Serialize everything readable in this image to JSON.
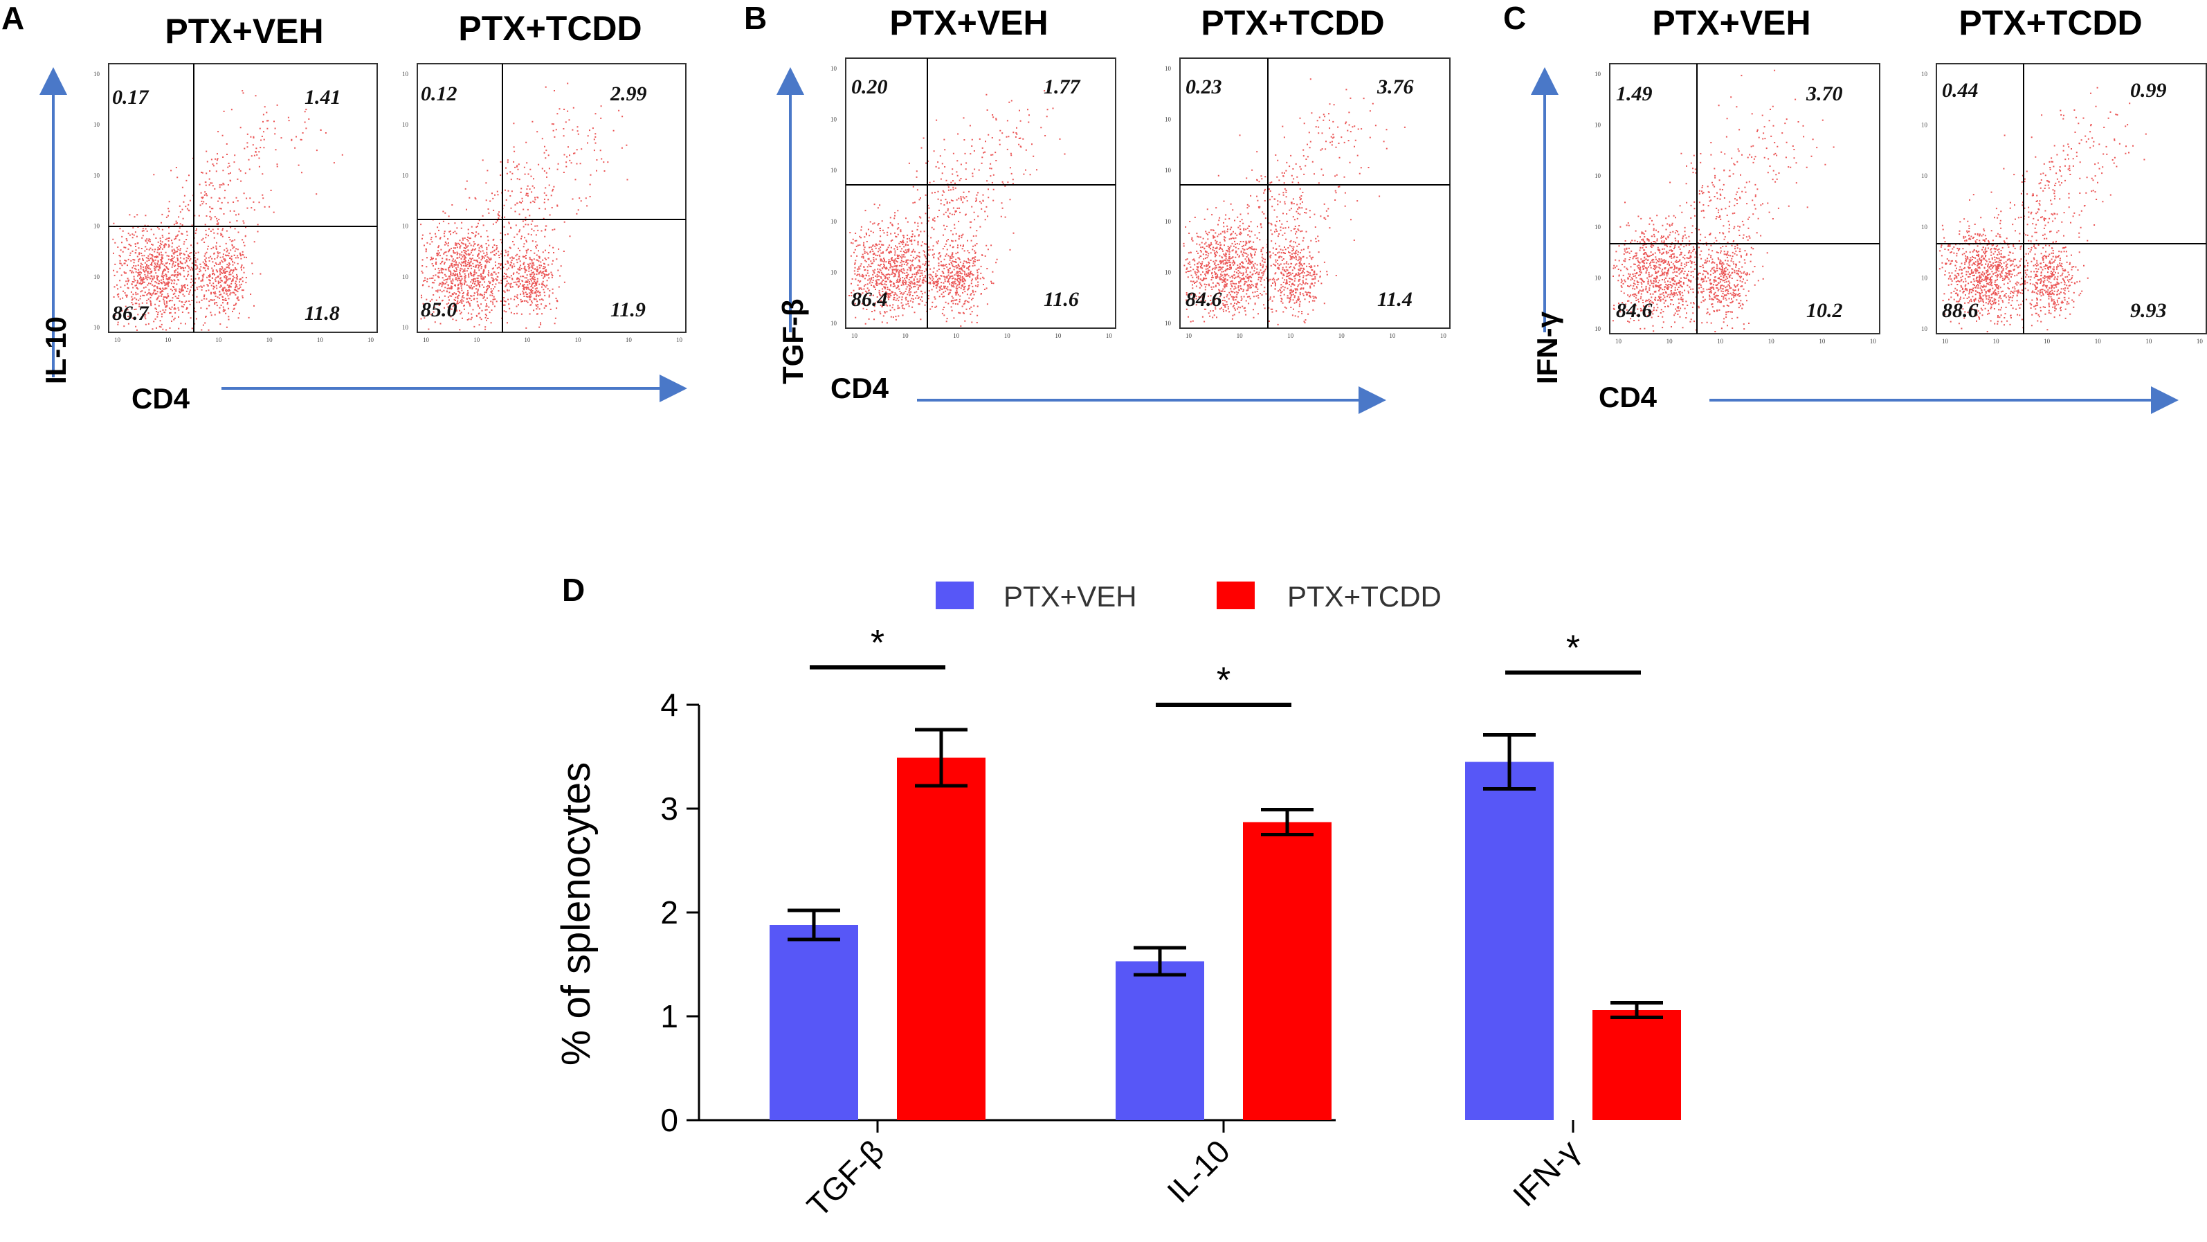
{
  "flow_panels": [
    {
      "letter": "A",
      "y_marker": "IL-10",
      "x_marker": "CD4",
      "plots": [
        {
          "title": "PTX+VEH",
          "q_ul": "0.17",
          "q_ur": "1.41",
          "q_ll": "86.7",
          "q_lr": "11.8"
        },
        {
          "title": "PTX+TCDD",
          "q_ul": "0.12",
          "q_ur": "2.99",
          "q_ll": "85.0",
          "q_lr": "11.9"
        }
      ]
    },
    {
      "letter": "B",
      "y_marker": "TGF-β",
      "x_marker": "CD4",
      "plots": [
        {
          "title": "PTX+VEH",
          "q_ul": "0.20",
          "q_ur": "1.77",
          "q_ll": "86.4",
          "q_lr": "11.6"
        },
        {
          "title": "PTX+TCDD",
          "q_ul": "0.23",
          "q_ur": "3.76",
          "q_ll": "84.6",
          "q_lr": "11.4"
        }
      ]
    },
    {
      "letter": "C",
      "y_marker": "IFN-γ",
      "x_marker": "CD4",
      "plots": [
        {
          "title": "PTX+VEH",
          "q_ul": "1.49",
          "q_ur": "3.70",
          "q_ll": "84.6",
          "q_lr": "10.2"
        },
        {
          "title": "PTX+TCDD",
          "q_ul": "0.44",
          "q_ur": "0.99",
          "q_ll": "88.6",
          "q_lr": "9.93"
        }
      ]
    }
  ],
  "tick_label": "10",
  "chart_data": {
    "type": "bar",
    "panel_letter": "D",
    "title": "",
    "xlabel": "",
    "ylabel": "% of splenocytes",
    "ylim": [
      0,
      4
    ],
    "yticks": [
      "0",
      "1",
      "2",
      "3",
      "4"
    ],
    "categories": [
      "TGF-β",
      "IL-10",
      "IFN-γ"
    ],
    "series": [
      {
        "name": "PTX+VEH",
        "color": "#5757f7",
        "values": [
          1.88,
          1.53,
          3.45
        ],
        "errors": [
          0.14,
          0.13,
          0.26
        ]
      },
      {
        "name": "PTX+TCDD",
        "color": "#ff0000",
        "values": [
          3.49,
          2.87,
          1.06
        ],
        "errors": [
          0.27,
          0.12,
          0.07
        ]
      }
    ],
    "significance": [
      "*",
      "*",
      "*"
    ],
    "legend_position": "top-center"
  },
  "colors": {
    "dot": "#e41e1e",
    "arrow": "#4a78c8"
  }
}
